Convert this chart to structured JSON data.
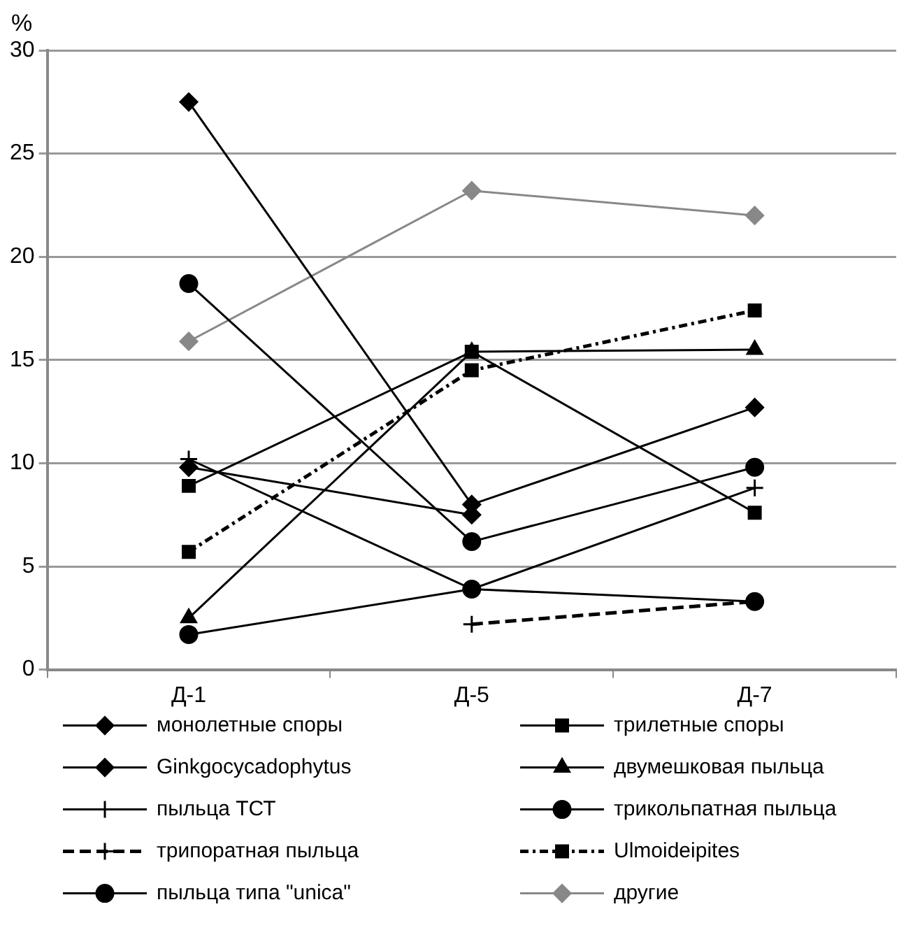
{
  "chart_data": {
    "type": "line",
    "ylabel": "%",
    "categories": [
      "Д-1",
      "Д-5",
      "Д-7"
    ],
    "ylim": [
      0,
      30
    ],
    "yticks": [
      0,
      5,
      10,
      15,
      20,
      25,
      30
    ],
    "grid": "y",
    "legend": "bottom",
    "line_style": "solid",
    "series": [
      {
        "name": "монолетные споры",
        "color": "#000000",
        "marker": "diamond",
        "values": [
          27.5,
          8.0,
          12.7
        ]
      },
      {
        "name": "трилетные споры",
        "color": "#000000",
        "marker": "square",
        "values": [
          8.9,
          15.4,
          7.6
        ]
      },
      {
        "name": "Ginkgocycadophytus",
        "color": "#000000",
        "marker": "diamond",
        "values": [
          9.8,
          7.5,
          null
        ]
      },
      {
        "name": "двумешковая пыльца",
        "color": "#000000",
        "marker": "triangle",
        "values": [
          2.5,
          15.4,
          15.5
        ]
      },
      {
        "name": "пыльца ТСТ",
        "color": "#000000",
        "marker": "cross",
        "values": [
          10.2,
          3.9,
          8.8
        ]
      },
      {
        "name": "трикольпатная пыльца",
        "color": "#000000",
        "marker": "circle",
        "values": [
          18.7,
          6.2,
          9.8
        ]
      },
      {
        "name": "трипоратная пыльца",
        "color": "#000000",
        "marker": "cross",
        "line_style": "dashed",
        "values": [
          null,
          2.2,
          3.3
        ]
      },
      {
        "name": "Ulmoideipites",
        "color": "#000000",
        "marker": "square",
        "line_style": "dotted",
        "values": [
          5.7,
          14.5,
          17.4
        ]
      },
      {
        "name": "пыльца типа \"unica\"",
        "color": "#000000",
        "marker": "circle",
        "values": [
          1.7,
          3.9,
          3.3
        ]
      },
      {
        "name": "другие",
        "color": "#888888",
        "marker": "diamond",
        "values": [
          15.9,
          23.2,
          22.0
        ]
      }
    ]
  }
}
